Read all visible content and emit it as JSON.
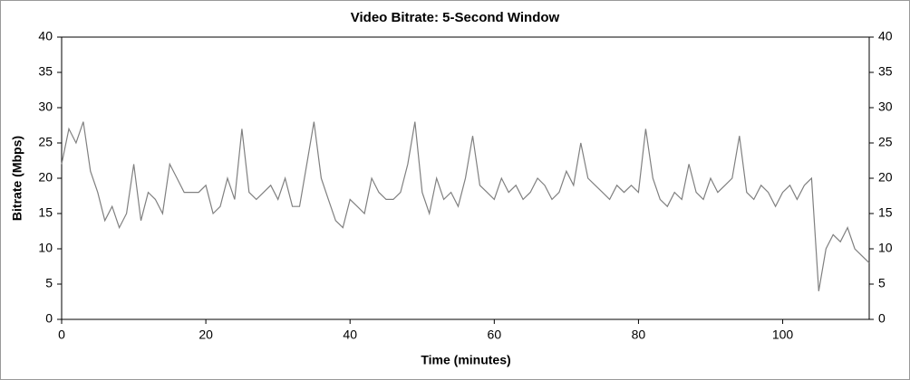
{
  "chart_data": {
    "type": "line",
    "title": "Video Bitrate: 5-Second Window",
    "x_label": "Time (minutes)",
    "y_label": "Bitrate (Mbps)",
    "x": [
      0,
      1,
      2,
      3,
      4,
      5,
      6,
      7,
      8,
      9,
      10,
      11,
      12,
      13,
      14,
      15,
      16,
      17,
      18,
      19,
      20,
      21,
      22,
      23,
      24,
      25,
      26,
      27,
      28,
      29,
      30,
      31,
      32,
      33,
      34,
      35,
      36,
      37,
      38,
      39,
      40,
      41,
      42,
      43,
      44,
      45,
      46,
      47,
      48,
      49,
      50,
      51,
      52,
      53,
      54,
      55,
      56,
      57,
      58,
      59,
      60,
      61,
      62,
      63,
      64,
      65,
      66,
      67,
      68,
      69,
      70,
      71,
      72,
      73,
      74,
      75,
      76,
      77,
      78,
      79,
      80,
      81,
      82,
      83,
      84,
      85,
      86,
      87,
      88,
      89,
      90,
      91,
      92,
      93,
      94,
      95,
      96,
      97,
      98,
      99,
      100,
      101,
      102,
      103,
      104,
      105,
      106,
      107,
      108,
      109,
      110,
      111,
      112
    ],
    "values": [
      22,
      27,
      25,
      28,
      21,
      18,
      14,
      16,
      13,
      15,
      22,
      14,
      18,
      17,
      15,
      22,
      20,
      18,
      18,
      18,
      19,
      15,
      16,
      20,
      17,
      27,
      18,
      17,
      18,
      19,
      17,
      20,
      16,
      16,
      22,
      28,
      20,
      17,
      14,
      13,
      17,
      16,
      15,
      20,
      18,
      17,
      17,
      18,
      22,
      28,
      18,
      15,
      20,
      17,
      18,
      16,
      20,
      26,
      19,
      18,
      17,
      20,
      18,
      19,
      17,
      18,
      20,
      19,
      17,
      18,
      21,
      19,
      25,
      20,
      19,
      18,
      17,
      19,
      18,
      19,
      18,
      27,
      20,
      17,
      16,
      18,
      17,
      22,
      18,
      17,
      20,
      18,
      19,
      20,
      26,
      18,
      17,
      19,
      18,
      16,
      18,
      19,
      17,
      19,
      20,
      4,
      10,
      12,
      11,
      13,
      10,
      9,
      8
    ],
    "color": "#808080",
    "xlim": [
      0,
      112
    ],
    "xticks": [
      0,
      20,
      40,
      60,
      80,
      100
    ],
    "ylim": [
      0,
      40
    ],
    "yticks": [
      0,
      5,
      10,
      15,
      20,
      25,
      30,
      35,
      40
    ],
    "grid": false
  }
}
